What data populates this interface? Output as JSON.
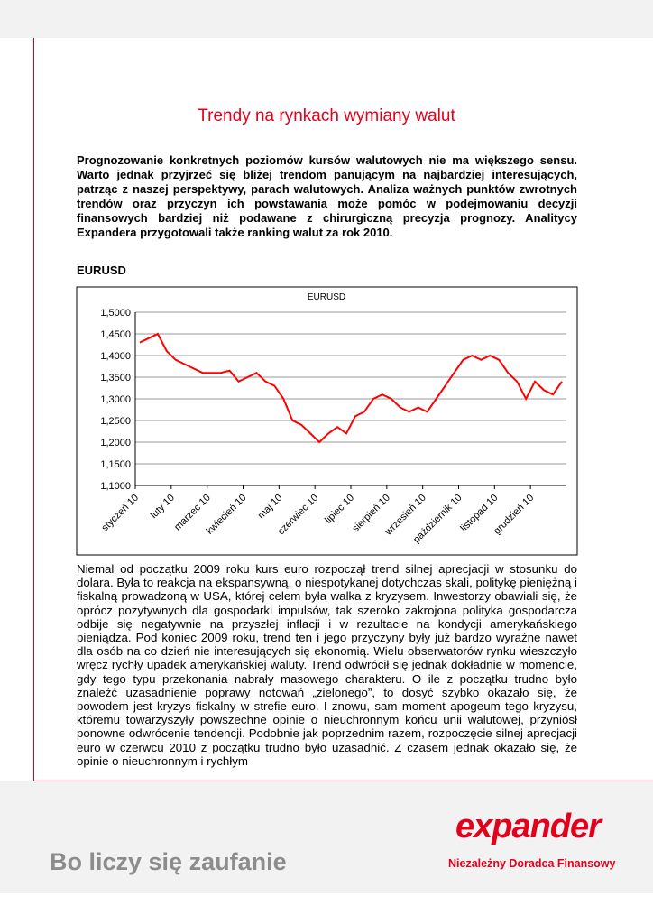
{
  "header": {
    "title": "Trendy na rynkach wymiany walut"
  },
  "intro": "Prognozowanie konkretnych poziomów kursów walutowych nie ma większego sensu. Warto jednak przyjrzeć się bliżej trendom panującym na najbardziej interesujących, patrząc z naszej perspektywy, parach walutowych. Analiza ważnych punktów zwrotnych trendów oraz przyczyn ich powstawania może pomóc w podejmowaniu decyzji finansowych bardziej niż podawane z chirurgiczną precyzja prognozy. Analitycy Expandera przygotowali także ranking walut za rok 2010.",
  "section_heading": "EURUSD",
  "chart_data": {
    "type": "line",
    "title": "EURUSD",
    "categories": [
      "styczeń 10",
      null,
      null,
      null,
      "luty 10",
      null,
      null,
      null,
      "marzec 10",
      null,
      null,
      null,
      "kwiecień 10",
      null,
      null,
      null,
      "maj 10",
      null,
      null,
      null,
      "czerwiec 10",
      null,
      null,
      null,
      "lipiec 10",
      null,
      null,
      null,
      "sierpień 10",
      null,
      null,
      null,
      "wrzesień 10",
      null,
      null,
      null,
      "październik 10",
      null,
      null,
      null,
      "listopad 10",
      null,
      null,
      null,
      "grudzień 10",
      null,
      null,
      null
    ],
    "series": [
      {
        "name": "EURUSD",
        "color": "#ff0000",
        "values": [
          1.43,
          1.44,
          1.45,
          1.41,
          1.39,
          1.38,
          1.37,
          1.36,
          1.36,
          1.36,
          1.365,
          1.34,
          1.35,
          1.36,
          1.34,
          1.33,
          1.3,
          1.25,
          1.24,
          1.22,
          1.2,
          1.22,
          1.235,
          1.22,
          1.26,
          1.27,
          1.3,
          1.31,
          1.3,
          1.28,
          1.27,
          1.28,
          1.27,
          1.3,
          1.33,
          1.36,
          1.39,
          1.4,
          1.39,
          1.4,
          1.39,
          1.36,
          1.34,
          1.3,
          1.34,
          1.32,
          1.31,
          1.34
        ]
      }
    ],
    "ylim": [
      1.1,
      1.5
    ],
    "yticks": [
      {
        "value": 1.1,
        "label": "1,1000"
      },
      {
        "value": 1.15,
        "label": "1,1500"
      },
      {
        "value": 1.2,
        "label": "1,2000"
      },
      {
        "value": 1.25,
        "label": "1,2500"
      },
      {
        "value": 1.3,
        "label": "1,3000"
      },
      {
        "value": 1.35,
        "label": "1,3500"
      },
      {
        "value": 1.4,
        "label": "1,4000"
      },
      {
        "value": 1.45,
        "label": "1,4500"
      },
      {
        "value": 1.5,
        "label": "1,5000"
      }
    ],
    "grid": true
  },
  "body": "Niemal od początku 2009 roku kurs euro rozpoczął trend silnej aprecjacji w stosunku do dolara. Była to reakcja na ekspansywną, o niespotykanej dotychczas skali, politykę pieniężną i fiskalną prowadzoną w USA, której celem była walka z kryzysem. Inwestorzy obawiali się, że oprócz pozytywnych dla gospodarki impulsów, tak szeroko zakrojona polityka gospodarcza odbije się negatywnie na przyszłej inflacji i w rezultacie na kondycji amerykańskiego pieniądza. Pod koniec 2009 roku, trend ten i jego przyczyny były już bardzo wyraźne nawet dla osób na co dzień nie interesujących się ekonomią. Wielu obserwatorów rynku wieszczyło wręcz rychły upadek amerykańskiej waluty. Trend odwrócił się jednak dokładnie w momencie, gdy tego typu przekonania nabrały masowego charakteru. O ile z początku trudno było znaleźć uzasadnienie poprawy notowań „zielonego”, to dosyć szybko okazało się, że powodem jest kryzys fiskalny w strefie euro. I znowu, sam moment apogeum tego kryzysu, któremu towarzyszyły powszechne opinie o nieuchronnym końcu unii walutowej, przyniósł ponowne odwrócenie tendencji. Podobnie jak poprzednim razem, rozpoczęcie silnej aprecjacji euro w czerwcu 2010 z początku trudno było uzasadnić. Z czasem jednak okazało się, że opinie o nieuchronnym i rychłym",
  "footer": {
    "slogan": "Bo liczy się zaufanie",
    "logo": "expander",
    "tagline": "Niezależny Doradca Finansowy"
  }
}
